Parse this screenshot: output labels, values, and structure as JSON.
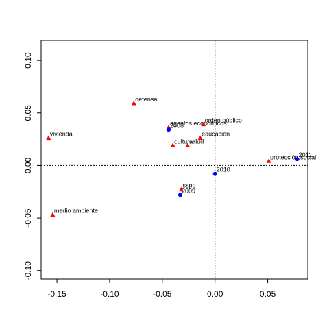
{
  "chart_data": {
    "type": "scatter",
    "title": "",
    "xlabel": "",
    "ylabel": "",
    "xlim": [
      -0.165,
      0.088
    ],
    "ylim": [
      -0.108,
      0.119
    ],
    "xticks": [
      -0.15,
      -0.1,
      -0.05,
      0.0,
      0.05
    ],
    "xtick_labels": [
      "-0.15",
      "-0.10",
      "-0.05",
      "0.00",
      "0.05"
    ],
    "yticks": [
      -0.1,
      -0.05,
      0.0,
      0.05,
      0.1
    ],
    "ytick_labels": [
      "-0.10",
      "-0.05",
      "0.00",
      "0.05",
      "0.10"
    ],
    "grid": false,
    "reference_lines": {
      "x": 0,
      "y": 0
    },
    "series": [
      {
        "marker": "triangle",
        "color": "#ff0000",
        "points": [
          {
            "label": "defensa",
            "x": -0.077,
            "y": 0.059
          },
          {
            "label": "vivienda",
            "x": -0.158,
            "y": 0.026
          },
          {
            "label": "agentos económicos",
            "x": -0.044,
            "y": 0.036
          },
          {
            "label": "orden público",
            "x": -0.011,
            "y": 0.039
          },
          {
            "label": "educación",
            "x": -0.014,
            "y": 0.026
          },
          {
            "label": "cultura",
            "x": -0.04,
            "y": 0.019
          },
          {
            "label": "salud",
            "x": -0.026,
            "y": 0.019
          },
          {
            "label": "protección social",
            "x": 0.051,
            "y": 0.004
          },
          {
            "label": "sspp",
            "x": -0.032,
            "y": -0.023
          },
          {
            "label": "medio ambiente",
            "x": -0.154,
            "y": -0.047
          }
        ]
      },
      {
        "marker": "circle",
        "color": "#0000ff",
        "points": [
          {
            "label": "2009",
            "x": -0.033,
            "y": -0.028
          },
          {
            "label": "2010",
            "x": 0.0,
            "y": -0.008
          },
          {
            "label": "2011",
            "x": 0.078,
            "y": 0.006
          },
          {
            "label": "2008",
            "x": -0.044,
            "y": 0.034
          }
        ]
      }
    ]
  }
}
